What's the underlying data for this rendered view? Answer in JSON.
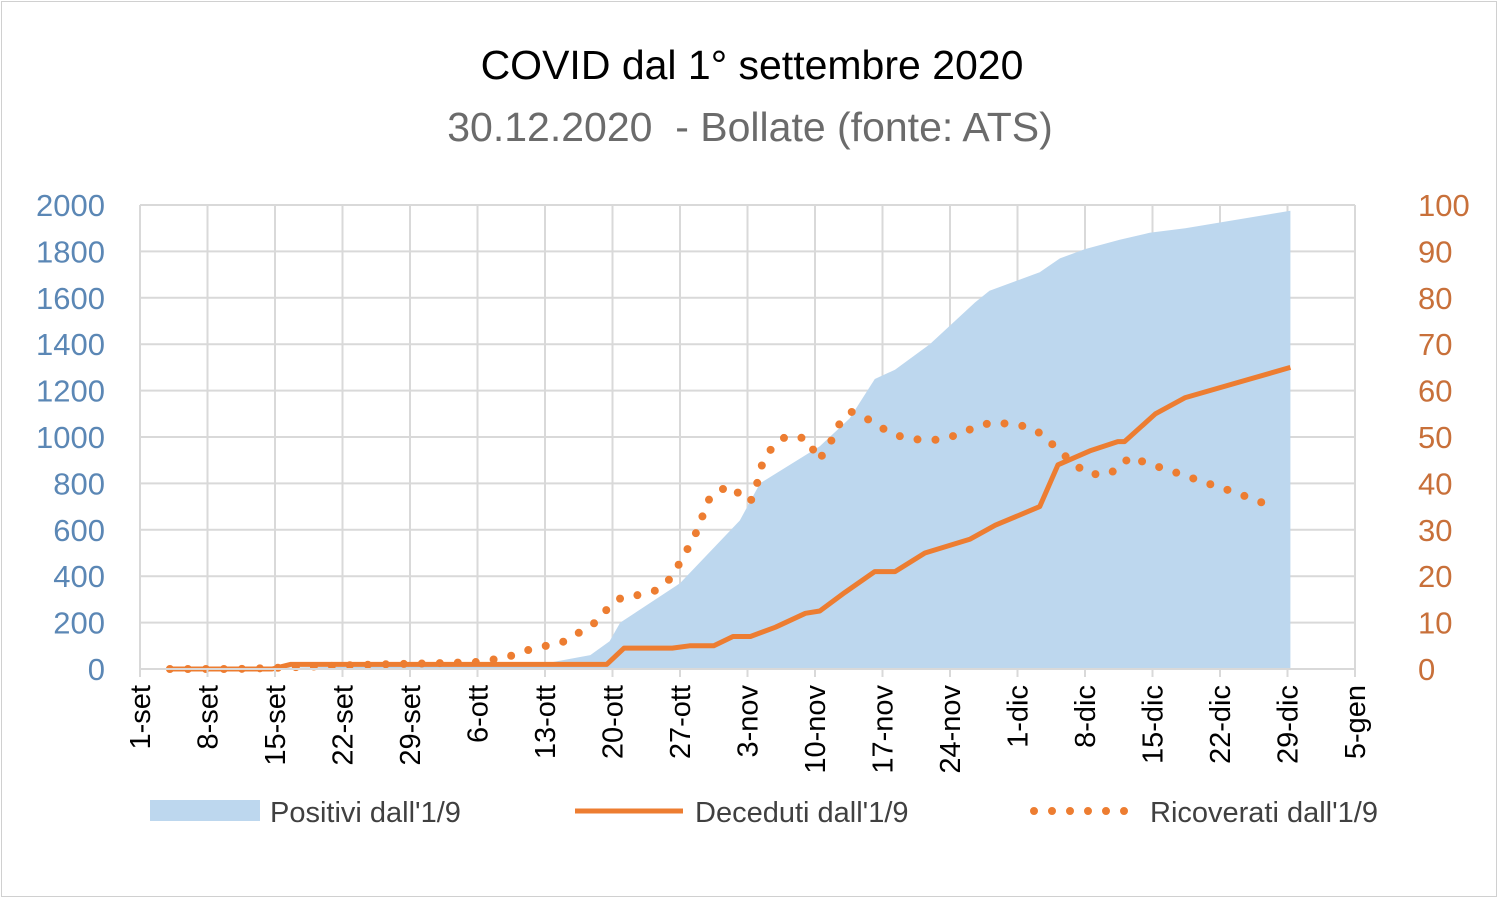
{
  "chart_data": {
    "type": "area+line",
    "title": "COVID dal 1° settembre 2020",
    "subtitle": "30.12.2020  - Bollate (fonte: ATS)",
    "x_unit": "days since 1-set-2020",
    "xlim": [
      0,
      126
    ],
    "x_ticks": [
      {
        "day": 0,
        "label": "1-set"
      },
      {
        "day": 7,
        "label": "8-set"
      },
      {
        "day": 14,
        "label": "15-set"
      },
      {
        "day": 21,
        "label": "22-set"
      },
      {
        "day": 28,
        "label": "29-set"
      },
      {
        "day": 35,
        "label": "6-ott"
      },
      {
        "day": 42,
        "label": "13-ott"
      },
      {
        "day": 49,
        "label": "20-ott"
      },
      {
        "day": 56,
        "label": "27-ott"
      },
      {
        "day": 63,
        "label": "3-nov"
      },
      {
        "day": 70,
        "label": "10-nov"
      },
      {
        "day": 77,
        "label": "17-nov"
      },
      {
        "day": 84,
        "label": "24-nov"
      },
      {
        "day": 91,
        "label": "1-dic"
      },
      {
        "day": 98,
        "label": "8-dic"
      },
      {
        "day": 105,
        "label": "15-dic"
      },
      {
        "day": 112,
        "label": "22-dic"
      },
      {
        "day": 119,
        "label": "29-dic"
      },
      {
        "day": 126,
        "label": "5-gen"
      }
    ],
    "y_left": {
      "range": [
        0,
        2000
      ],
      "ticks": [
        "0",
        "200",
        "400",
        "600",
        "800",
        "1000",
        "1200",
        "1400",
        "1600",
        "1800",
        "2000"
      ],
      "color": "#5b87b5"
    },
    "y_right": {
      "range": [
        0,
        100
      ],
      "ticks": [
        "0",
        "10",
        "20",
        "30",
        "40",
        "50",
        "60",
        "70",
        "80",
        "90",
        "100"
      ],
      "color": "#c8703a"
    },
    "grid": true,
    "legend_position": "bottom",
    "series": [
      {
        "name": "Positivi dall'1/9",
        "kind": "area",
        "axis": "left",
        "color": "#bdd7ee",
        "points": [
          [
            3.1,
            0
          ],
          [
            41.5,
            20
          ],
          [
            46.7,
            60
          ],
          [
            48.7,
            120
          ],
          [
            49.8,
            200
          ],
          [
            56,
            370
          ],
          [
            62.2,
            640
          ],
          [
            64.3,
            800
          ],
          [
            70.5,
            960
          ],
          [
            73.6,
            1080
          ],
          [
            76.2,
            1250
          ],
          [
            78.3,
            1290
          ],
          [
            81.9,
            1400
          ],
          [
            86.6,
            1580
          ],
          [
            88.1,
            1630
          ],
          [
            93.3,
            1710
          ],
          [
            95.4,
            1770
          ],
          [
            98,
            1810
          ],
          [
            101.6,
            1850
          ],
          [
            104.7,
            1880
          ],
          [
            108.4,
            1900
          ],
          [
            119.3,
            1975
          ]
        ]
      },
      {
        "name": "Deceduti dall'1/9",
        "kind": "line",
        "axis": "right",
        "color": "#ed7d31",
        "points": [
          [
            3.1,
            0
          ],
          [
            13.7,
            0
          ],
          [
            15.6,
            1
          ],
          [
            48.4,
            1
          ],
          [
            50.2,
            4.5
          ],
          [
            55.2,
            4.5
          ],
          [
            57,
            5
          ],
          [
            59.5,
            5
          ],
          [
            61.5,
            7
          ],
          [
            63.3,
            7
          ],
          [
            65.9,
            9
          ],
          [
            69,
            12
          ],
          [
            70.5,
            12.5
          ],
          [
            73.1,
            16.5
          ],
          [
            76.2,
            21
          ],
          [
            78.3,
            21
          ],
          [
            81.4,
            25
          ],
          [
            86.1,
            28
          ],
          [
            88.7,
            31
          ],
          [
            93.3,
            35
          ],
          [
            95.2,
            44
          ],
          [
            98.5,
            47
          ],
          [
            101.4,
            49
          ],
          [
            102.1,
            49
          ],
          [
            105.3,
            55
          ],
          [
            108.4,
            58.5
          ],
          [
            119.3,
            65
          ]
        ]
      },
      {
        "name": "Ricoverati dall'1/9",
        "kind": "dotted-line",
        "axis": "right",
        "color": "#ed7d31",
        "points": [
          [
            3.1,
            0
          ],
          [
            10,
            0
          ],
          [
            15,
            0.3
          ],
          [
            20,
            0.7
          ],
          [
            25,
            1
          ],
          [
            30,
            1.2
          ],
          [
            35,
            1.5
          ],
          [
            38,
            2.5
          ],
          [
            40.1,
            4
          ],
          [
            44.1,
            6
          ],
          [
            47.2,
            10
          ],
          [
            48.7,
            13.5
          ],
          [
            50,
            15.5
          ],
          [
            51.9,
            16
          ],
          [
            53.6,
            17
          ],
          [
            55,
            19.5
          ],
          [
            56.3,
            24
          ],
          [
            57.6,
            29
          ],
          [
            59.1,
            37
          ],
          [
            61,
            39.5
          ],
          [
            62.2,
            37.7
          ],
          [
            63.3,
            36
          ],
          [
            64,
            40
          ],
          [
            64.5,
            44
          ],
          [
            65.5,
            47.6
          ],
          [
            66.9,
            50
          ],
          [
            68.4,
            50
          ],
          [
            69.5,
            49
          ],
          [
            70.2,
            45
          ],
          [
            71,
            46.5
          ],
          [
            71.9,
            50
          ],
          [
            72.7,
            53.5
          ],
          [
            73.8,
            55.4
          ],
          [
            75.7,
            53.6
          ],
          [
            77.3,
            51.5
          ],
          [
            79,
            50
          ],
          [
            80.9,
            49.4
          ],
          [
            82.8,
            49.4
          ],
          [
            84.7,
            50.4
          ],
          [
            86.5,
            52
          ],
          [
            88.4,
            53.2
          ],
          [
            90.2,
            52.8
          ],
          [
            92.1,
            52.2
          ],
          [
            93.7,
            50.4
          ],
          [
            95.1,
            47.4
          ],
          [
            96.7,
            44.6
          ],
          [
            98.1,
            42.2
          ],
          [
            100,
            41.8
          ],
          [
            101.5,
            43.1
          ],
          [
            102.6,
            45.7
          ],
          [
            104.4,
            44.4
          ],
          [
            106.3,
            43.1
          ],
          [
            108.2,
            41.8
          ],
          [
            110,
            40.5
          ],
          [
            111.9,
            39.2
          ],
          [
            113.8,
            37.9
          ],
          [
            115.6,
            36.4
          ],
          [
            117.5,
            35.1
          ]
        ]
      }
    ]
  }
}
